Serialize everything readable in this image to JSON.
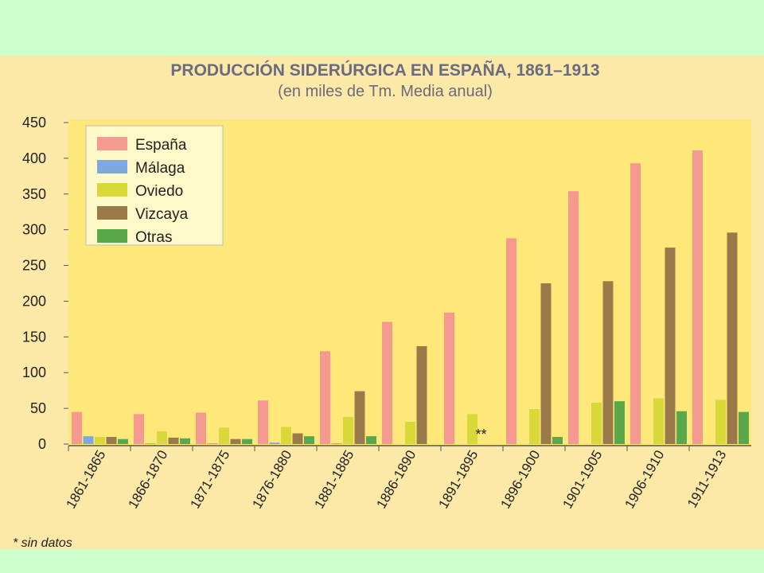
{
  "chart_data": {
    "type": "bar",
    "title": "PRODUCCIÓN SIDERÚRGICA EN ESPAÑA, 1861–1913",
    "subtitle": "(en miles de Tm. Media anual)",
    "categories": [
      "1861-1865",
      "1866-1870",
      "1871-1875",
      "1876-1880",
      "1881-1885",
      "1886-1890",
      "1891-1895",
      "1896-1900",
      "1901-1905",
      "1906-1910",
      "1911-1913"
    ],
    "series": [
      {
        "name": "España",
        "color": "#f49a90",
        "values": [
          45,
          42,
          44,
          61,
          130,
          171,
          184,
          288,
          354,
          393,
          411
        ]
      },
      {
        "name": "Málaga",
        "color": "#7fa7e0",
        "values": [
          11,
          1,
          1,
          2,
          1,
          0,
          0,
          0,
          0,
          0,
          0
        ]
      },
      {
        "name": "Oviedo",
        "color": "#d8d838",
        "values": [
          10,
          18,
          23,
          24,
          38,
          31,
          42,
          49,
          58,
          64,
          62
        ]
      },
      {
        "name": "Vizcaya",
        "color": "#9a7a48",
        "values": [
          10,
          9,
          7,
          15,
          74,
          137,
          null,
          225,
          228,
          275,
          296
        ]
      },
      {
        "name": "Otras",
        "color": "#5aa84a",
        "values": [
          7,
          8,
          7,
          11,
          11,
          0,
          null,
          10,
          60,
          46,
          45
        ]
      }
    ],
    "ylim": [
      0,
      450
    ],
    "yticks": [
      0,
      50,
      100,
      150,
      200,
      250,
      300,
      350,
      400,
      450
    ],
    "legend_position": "top-left",
    "grid": false,
    "missing_marker": "**",
    "footnote": "* sin datos"
  }
}
